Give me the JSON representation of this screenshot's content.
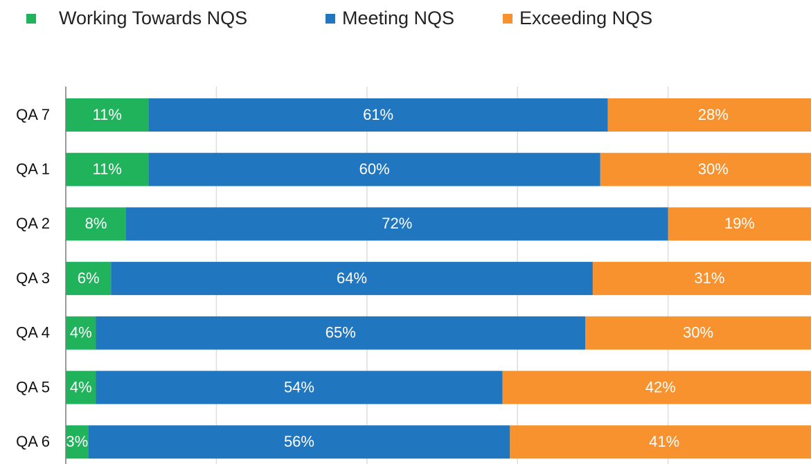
{
  "chart_data": {
    "type": "stacked_barh",
    "categories": [
      "QA 7",
      "QA 1",
      "QA 2",
      "QA 3",
      "QA 4",
      "QA 5",
      "QA 6"
    ],
    "series": [
      {
        "name": "Working Towards NQS",
        "color": "#21b35c",
        "values": [
          11,
          11,
          8,
          6,
          4,
          4,
          3
        ],
        "value_labels": [
          "11%",
          "11%",
          "8%",
          "6%",
          "4%",
          "4%",
          "3%"
        ]
      },
      {
        "name": "Meeting NQS",
        "color": "#2176c0",
        "values": [
          61,
          60,
          72,
          64,
          65,
          54,
          56
        ],
        "value_labels": [
          "61%",
          "60%",
          "72%",
          "64%",
          "65%",
          "54%",
          "56%"
        ]
      },
      {
        "name": "Exceeding NQS",
        "color": "#f7922e",
        "values": [
          28,
          30,
          19,
          31,
          30,
          42,
          41
        ],
        "value_labels": [
          "28%",
          "30%",
          "19%",
          "31%",
          "30%",
          "42%",
          "41%"
        ]
      }
    ],
    "xlim": [
      0,
      100
    ],
    "xticks": [
      0,
      20,
      40,
      60,
      80,
      100
    ],
    "grid": true,
    "legend": "top"
  }
}
